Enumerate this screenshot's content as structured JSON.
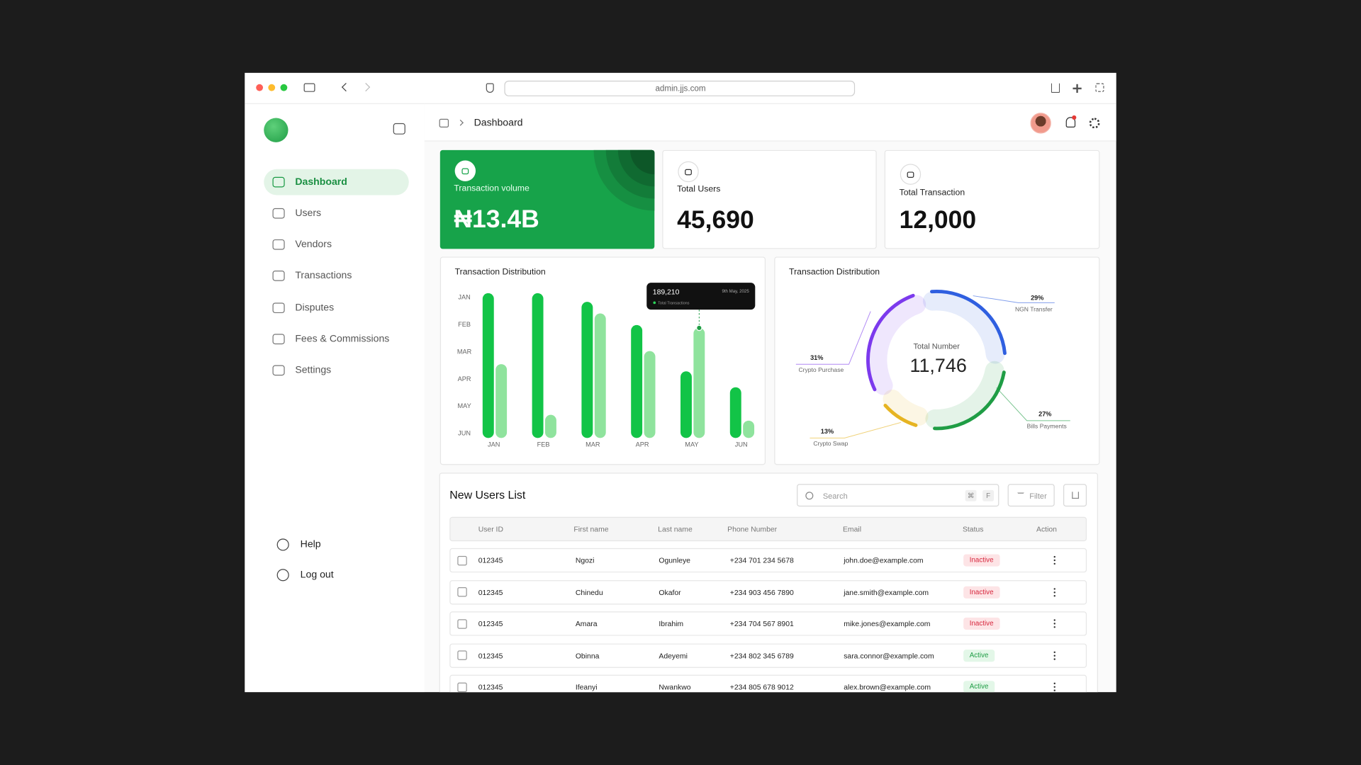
{
  "browser": {
    "url": "admin.jjs.com"
  },
  "sidebar": {
    "nav": [
      "Dashboard",
      "Users",
      "Vendors",
      "Transactions",
      "Disputes",
      "Fees & Commissions",
      "Settings"
    ],
    "active": 0,
    "footer": [
      "Help",
      "Log out"
    ]
  },
  "header": {
    "breadcrumb": "Dashboard"
  },
  "stats": [
    {
      "label": "Transaction volume",
      "value": "₦13.4B"
    },
    {
      "label": "Total Users",
      "value": "45,690"
    },
    {
      "label": "Total Transaction",
      "value": "12,000"
    }
  ],
  "chart_data": [
    {
      "type": "bar",
      "title": "Transaction Distribution",
      "categories": [
        "JAN",
        "FEB",
        "MAR",
        "APR",
        "MAY",
        "JUN"
      ],
      "y_labels": [
        "JAN",
        "FEB",
        "MAR",
        "APR",
        "MAY",
        "JUN"
      ],
      "ylim": [
        0,
        100
      ],
      "series": [
        {
          "color": "#12c447",
          "values": [
            100,
            100,
            94,
            78,
            46,
            35
          ]
        },
        {
          "color": "#8fe39d",
          "values": [
            51,
            16,
            86,
            60,
            76,
            12
          ]
        }
      ],
      "tooltip": {
        "value": "189,210",
        "date": "9th May, 2025",
        "label": "Total Transactions"
      }
    },
    {
      "type": "pie",
      "title": "Transaction Distribution",
      "center_label": "Total Number",
      "center_value": "11,746",
      "categories": [
        "NGN Transfer",
        "Bills Payments",
        "Crypto Swap",
        "Crypto Purchase"
      ],
      "values": [
        29,
        27,
        13,
        31
      ],
      "value_labels": [
        "29%",
        "27%",
        "13%",
        "31%"
      ],
      "colors": [
        "#2f5fe0",
        "#1f9d45",
        "#e6b422",
        "#7c3aed"
      ]
    }
  ],
  "users_table": {
    "title": "New Users List",
    "search_placeholder": "Search",
    "shortcut": [
      "⌘",
      "F"
    ],
    "filter": "Filter",
    "columns": [
      "User ID",
      "First name",
      "Last name",
      "Phone Number",
      "Email",
      "Status",
      "Action"
    ],
    "rows": [
      [
        "012345",
        "Ngozi",
        "Ogunleye",
        "+234 701 234 5678",
        "john.doe@example.com",
        "Inactive"
      ],
      [
        "012345",
        "Chinedu",
        "Okafor",
        "+234 903 456 7890",
        "jane.smith@example.com",
        "Inactive"
      ],
      [
        "012345",
        "Amara",
        "Ibrahim",
        "+234 704 567 8901",
        "mike.jones@example.com",
        "Inactive"
      ],
      [
        "012345",
        "Obinna",
        "Adeyemi",
        "+234 802 345 6789",
        "sara.connor@example.com",
        "Active"
      ],
      [
        "012345",
        "Ifeanyi",
        "Nwankwo",
        "+234 805 678 9012",
        "alex.brown@example.com",
        "Active"
      ]
    ],
    "status_colors": {
      "Inactive": {
        "text": "#d7263d",
        "bg": "#fde4e6"
      },
      "Active": {
        "text": "#1f9d45",
        "bg": "#e3f7e8"
      }
    }
  }
}
